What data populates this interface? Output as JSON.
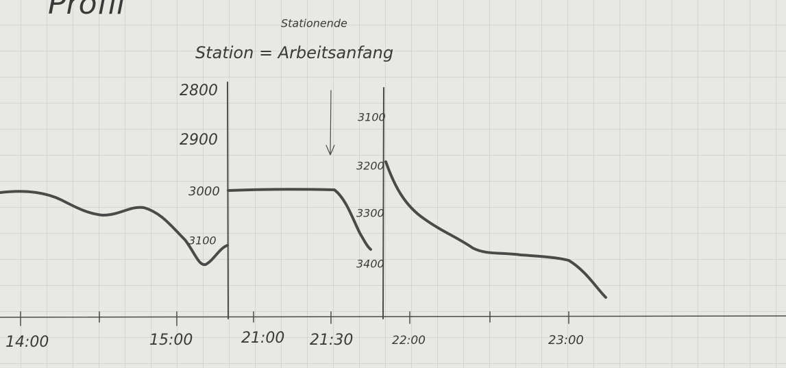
{
  "title": "Profil",
  "annotations": {
    "top": "Stationende",
    "main": "Station = Arbeitsanfang"
  },
  "left_axis": {
    "labels": [
      "2800",
      "2900",
      "3000",
      "3100"
    ]
  },
  "right_axis": {
    "labels": [
      "3100",
      "3200",
      "3300",
      "3400"
    ]
  },
  "time_axis": {
    "labels": [
      "14:00",
      "15:00",
      "21:00",
      "21:30",
      "22:00",
      "23:00"
    ]
  }
}
